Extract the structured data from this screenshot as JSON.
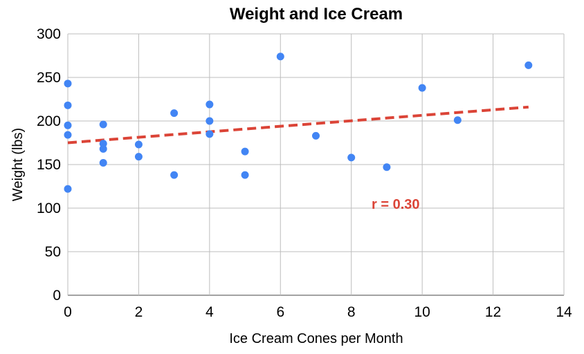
{
  "chart_data": {
    "type": "scatter",
    "title": "Weight and Ice Cream",
    "xlabel": "Ice Cream Cones per Month",
    "ylabel": "Weight (lbs)",
    "xlim": [
      0,
      14
    ],
    "ylim": [
      0,
      300
    ],
    "x_ticks": [
      0,
      2,
      4,
      6,
      8,
      10,
      12,
      14
    ],
    "y_ticks": [
      0,
      50,
      100,
      150,
      200,
      250,
      300
    ],
    "grid": true,
    "legend": "none",
    "series": [
      {
        "color": "#4285f4",
        "points": [
          {
            "x": 0,
            "y": 243
          },
          {
            "x": 0,
            "y": 218
          },
          {
            "x": 0,
            "y": 195
          },
          {
            "x": 0,
            "y": 184
          },
          {
            "x": 0,
            "y": 122
          },
          {
            "x": 1,
            "y": 196
          },
          {
            "x": 1,
            "y": 174
          },
          {
            "x": 1,
            "y": 168
          },
          {
            "x": 1,
            "y": 152
          },
          {
            "x": 2,
            "y": 173
          },
          {
            "x": 2,
            "y": 159
          },
          {
            "x": 3,
            "y": 209
          },
          {
            "x": 3,
            "y": 138
          },
          {
            "x": 4,
            "y": 219
          },
          {
            "x": 4,
            "y": 200
          },
          {
            "x": 4,
            "y": 185
          },
          {
            "x": 5,
            "y": 165
          },
          {
            "x": 5,
            "y": 138
          },
          {
            "x": 6,
            "y": 274
          },
          {
            "x": 7,
            "y": 183
          },
          {
            "x": 8,
            "y": 158
          },
          {
            "x": 9,
            "y": 147
          },
          {
            "x": 10,
            "y": 238
          },
          {
            "x": 11,
            "y": 201
          },
          {
            "x": 13,
            "y": 264
          }
        ]
      }
    ],
    "trendline": {
      "style": "dashed",
      "color": "#db4437",
      "x": [
        0,
        13
      ],
      "y": [
        175,
        216
      ]
    },
    "annotation": {
      "text": "r = 0.30",
      "color": "#db4437"
    }
  }
}
